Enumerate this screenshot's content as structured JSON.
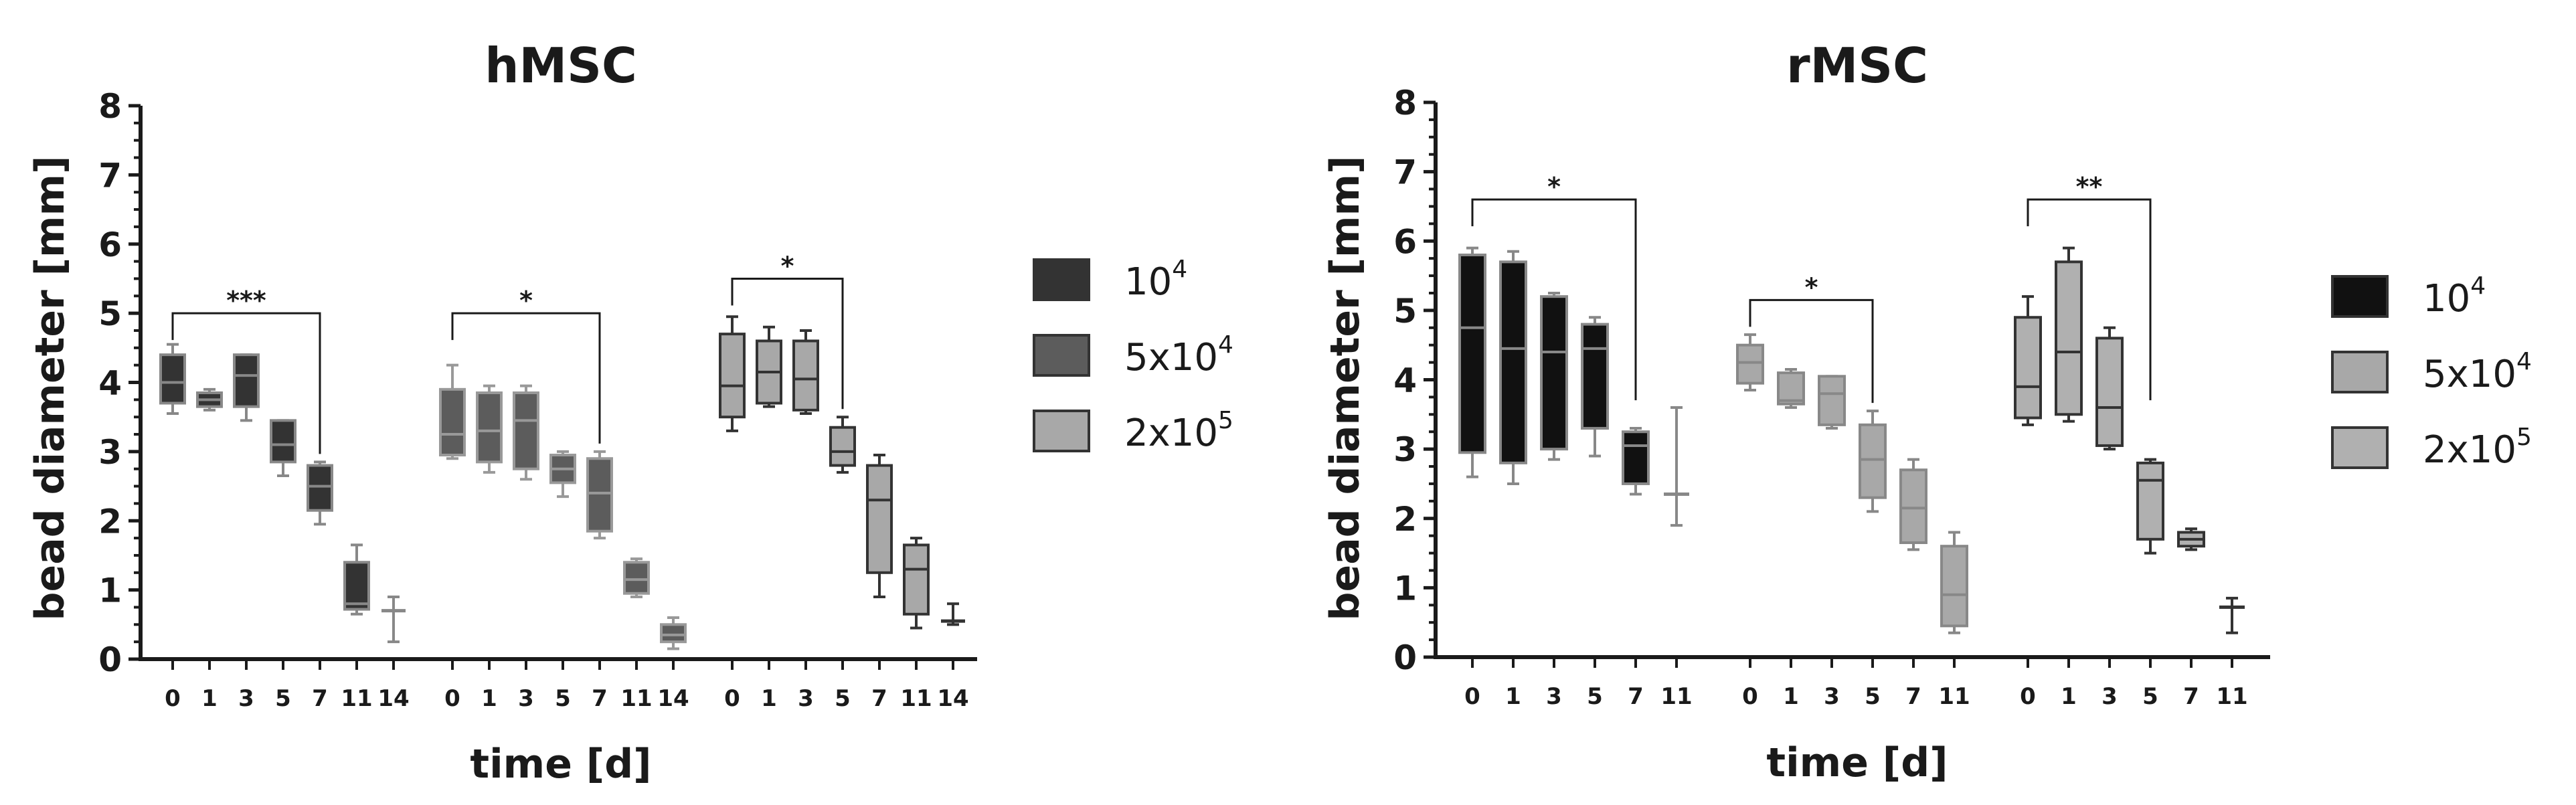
{
  "chart_data": [
    {
      "type": "box",
      "title": "hMSC",
      "xlabel": "time [d]",
      "ylabel": "bead diameter [mm]",
      "ylim": [
        0,
        8
      ],
      "yticks": [
        "0",
        "1",
        "2",
        "3",
        "4",
        "5",
        "6",
        "7",
        "8"
      ],
      "legend_position": "right",
      "series": [
        {
          "name": "10^4",
          "legend_base": "10",
          "legend_exp": "4",
          "fill": "#333333",
          "whisker": "#888888",
          "boxes": [
            {
              "x": "0",
              "min": 3.55,
              "q1": 3.7,
              "median": 4.0,
              "q3": 4.4,
              "max": 4.55
            },
            {
              "x": "1",
              "min": 3.6,
              "q1": 3.65,
              "median": 3.75,
              "q3": 3.85,
              "max": 3.9
            },
            {
              "x": "3",
              "min": 3.45,
              "q1": 3.65,
              "median": 4.1,
              "q3": 4.4,
              "max": 4.4
            },
            {
              "x": "5",
              "min": 2.65,
              "q1": 2.85,
              "median": 3.1,
              "q3": 3.45,
              "max": 3.45
            },
            {
              "x": "7",
              "min": 1.95,
              "q1": 2.15,
              "median": 2.5,
              "q3": 2.8,
              "max": 2.85
            },
            {
              "x": "11",
              "min": 0.65,
              "q1": 0.72,
              "median": 0.8,
              "q3": 1.4,
              "max": 1.65
            },
            {
              "x": "14",
              "min": 0.25,
              "q1": 0.7,
              "median": 0.7,
              "q3": 0.7,
              "max": 0.9,
              "flat": true
            }
          ],
          "bracket": {
            "from": "0",
            "to": "7",
            "y": 5.0,
            "label": "***"
          }
        },
        {
          "name": "5x10^4",
          "legend_base": "5x10",
          "legend_exp": "4",
          "fill": "#5c5c5c",
          "whisker": "#999999",
          "boxes": [
            {
              "x": "0",
              "min": 2.9,
              "q1": 2.95,
              "median": 3.25,
              "q3": 3.9,
              "max": 4.25
            },
            {
              "x": "1",
              "min": 2.7,
              "q1": 2.85,
              "median": 3.3,
              "q3": 3.85,
              "max": 3.95
            },
            {
              "x": "3",
              "min": 2.6,
              "q1": 2.75,
              "median": 3.45,
              "q3": 3.85,
              "max": 3.95
            },
            {
              "x": "5",
              "min": 2.35,
              "q1": 2.55,
              "median": 2.75,
              "q3": 2.95,
              "max": 3.0
            },
            {
              "x": "7",
              "min": 1.75,
              "q1": 1.85,
              "median": 2.4,
              "q3": 2.9,
              "max": 3.0
            },
            {
              "x": "11",
              "min": 0.9,
              "q1": 0.95,
              "median": 1.15,
              "q3": 1.4,
              "max": 1.45
            },
            {
              "x": "14",
              "min": 0.15,
              "q1": 0.25,
              "median": 0.35,
              "q3": 0.5,
              "max": 0.6
            }
          ],
          "bracket": {
            "from": "0",
            "to": "7",
            "y": 5.0,
            "label": "*"
          }
        },
        {
          "name": "2x10^5",
          "legend_base": "2x10",
          "legend_exp": "5",
          "fill": "#a8a8a8",
          "whisker": "#333333",
          "boxes": [
            {
              "x": "0",
              "min": 3.3,
              "q1": 3.5,
              "median": 3.95,
              "q3": 4.7,
              "max": 4.95
            },
            {
              "x": "1",
              "min": 3.65,
              "q1": 3.7,
              "median": 4.15,
              "q3": 4.6,
              "max": 4.8
            },
            {
              "x": "3",
              "min": 3.55,
              "q1": 3.6,
              "median": 4.05,
              "q3": 4.6,
              "max": 4.75
            },
            {
              "x": "5",
              "min": 2.7,
              "q1": 2.8,
              "median": 3.0,
              "q3": 3.35,
              "max": 3.5
            },
            {
              "x": "7",
              "min": 0.9,
              "q1": 1.25,
              "median": 2.3,
              "q3": 2.8,
              "max": 2.95
            },
            {
              "x": "11",
              "min": 0.45,
              "q1": 0.65,
              "median": 1.3,
              "q3": 1.65,
              "max": 1.75
            },
            {
              "x": "14",
              "min": 0.5,
              "q1": 0.55,
              "median": 0.55,
              "q3": 0.55,
              "max": 0.8,
              "flat": true
            }
          ],
          "bracket": {
            "from": "0",
            "to": "5",
            "y": 5.5,
            "label": "*"
          }
        }
      ]
    },
    {
      "type": "box",
      "title": "rMSC",
      "xlabel": "time [d]",
      "ylabel": "bead diameter [mm]",
      "ylim": [
        0,
        8
      ],
      "yticks": [
        "0",
        "1",
        "2",
        "3",
        "4",
        "5",
        "6",
        "7",
        "8"
      ],
      "legend_position": "right",
      "series": [
        {
          "name": "10^4",
          "legend_base": "10",
          "legend_exp": "4",
          "fill": "#111111",
          "whisker": "#888888",
          "boxes": [
            {
              "x": "0",
              "min": 2.6,
              "q1": 2.95,
              "median": 4.75,
              "q3": 5.8,
              "max": 5.9
            },
            {
              "x": "1",
              "min": 2.5,
              "q1": 2.8,
              "median": 4.45,
              "q3": 5.7,
              "max": 5.85
            },
            {
              "x": "3",
              "min": 2.85,
              "q1": 3.0,
              "median": 4.4,
              "q3": 5.2,
              "max": 5.25
            },
            {
              "x": "5",
              "min": 2.9,
              "q1": 3.3,
              "median": 4.45,
              "q3": 4.8,
              "max": 4.9
            },
            {
              "x": "7",
              "min": 2.35,
              "q1": 2.5,
              "median": 3.05,
              "q3": 3.25,
              "max": 3.3
            },
            {
              "x": "11",
              "min": 1.9,
              "q1": 2.35,
              "median": 2.35,
              "q3": 2.35,
              "max": 3.6,
              "flat": true
            }
          ],
          "bracket": {
            "from": "0",
            "to": "7",
            "y": 6.6,
            "label": "*"
          }
        },
        {
          "name": "5x10^4",
          "legend_base": "5x10",
          "legend_exp": "4",
          "fill": "#a8a8a8",
          "whisker": "#888888",
          "boxes": [
            {
              "x": "0",
              "min": 3.85,
              "q1": 3.95,
              "median": 4.25,
              "q3": 4.5,
              "max": 4.65
            },
            {
              "x": "1",
              "min": 3.6,
              "q1": 3.65,
              "median": 3.7,
              "q3": 4.1,
              "max": 4.15
            },
            {
              "x": "3",
              "min": 3.3,
              "q1": 3.35,
              "median": 3.8,
              "q3": 4.05,
              "max": 4.05
            },
            {
              "x": "5",
              "min": 2.1,
              "q1": 2.3,
              "median": 2.85,
              "q3": 3.35,
              "max": 3.55
            },
            {
              "x": "7",
              "min": 1.55,
              "q1": 1.65,
              "median": 2.15,
              "q3": 2.7,
              "max": 2.85
            },
            {
              "x": "11",
              "min": 0.35,
              "q1": 0.45,
              "median": 0.9,
              "q3": 1.6,
              "max": 1.8
            }
          ],
          "bracket": {
            "from": "0",
            "to": "5",
            "y": 5.15,
            "label": "*"
          }
        },
        {
          "name": "2x10^5",
          "legend_base": "2x10",
          "legend_exp": "5",
          "fill": "#b0b0b0",
          "whisker": "#333333",
          "boxes": [
            {
              "x": "0",
              "min": 3.35,
              "q1": 3.45,
              "median": 3.9,
              "q3": 4.9,
              "max": 5.2
            },
            {
              "x": "1",
              "min": 3.4,
              "q1": 3.5,
              "median": 4.4,
              "q3": 5.7,
              "max": 5.9
            },
            {
              "x": "3",
              "min": 3.0,
              "q1": 3.05,
              "median": 3.6,
              "q3": 4.6,
              "max": 4.75
            },
            {
              "x": "5",
              "min": 1.5,
              "q1": 1.7,
              "median": 2.55,
              "q3": 2.8,
              "max": 2.85
            },
            {
              "x": "7",
              "min": 1.55,
              "q1": 1.6,
              "median": 1.7,
              "q3": 1.8,
              "max": 1.85
            },
            {
              "x": "11",
              "min": 0.35,
              "q1": 0.72,
              "median": 0.72,
              "q3": 0.72,
              "max": 0.85,
              "flat": true
            }
          ],
          "bracket": {
            "from": "0",
            "to": "5",
            "y": 6.6,
            "label": "**"
          }
        }
      ]
    }
  ]
}
